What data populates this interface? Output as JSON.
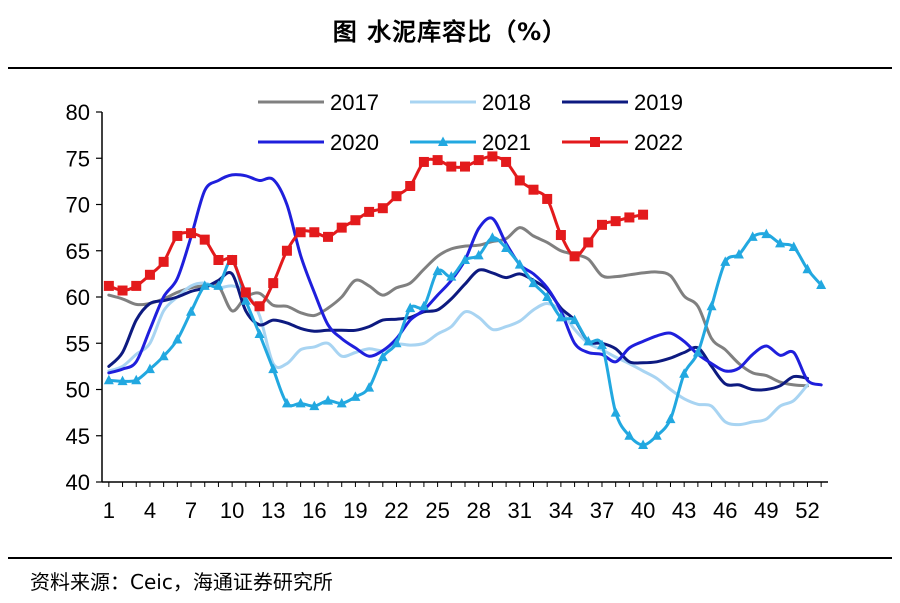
{
  "header": {
    "title": "图  水泥库容比（%）"
  },
  "footer": {
    "source": "资料来源：Ceic，海通证券研究所"
  },
  "chart_data": {
    "type": "line",
    "title": "图  水泥库容比（%）",
    "xlabel": "",
    "ylabel": "",
    "ylim": [
      40,
      80
    ],
    "xlim": [
      1,
      53
    ],
    "yticks": [
      40,
      45,
      50,
      55,
      60,
      65,
      70,
      75,
      80
    ],
    "xticks": [
      1,
      4,
      7,
      10,
      13,
      16,
      19,
      22,
      25,
      28,
      31,
      34,
      37,
      40,
      43,
      46,
      49,
      52
    ],
    "legend_position": "top",
    "series": [
      {
        "name": "2017",
        "color": "#808080",
        "marker": "none",
        "x": [
          1,
          2,
          3,
          4,
          5,
          6,
          7,
          8,
          9,
          10,
          11,
          12,
          13,
          14,
          15,
          16,
          17,
          18,
          19,
          20,
          21,
          22,
          23,
          24,
          25,
          26,
          27,
          28,
          29,
          30,
          31,
          32,
          33,
          34,
          35,
          36,
          37,
          38,
          39,
          40,
          41,
          42,
          43,
          44,
          45,
          46,
          47,
          48,
          49,
          50,
          51,
          52
        ],
        "values": [
          60.2,
          59.8,
          59.2,
          59.3,
          59.8,
          60.5,
          61.0,
          61.2,
          61.2,
          58.5,
          60.0,
          60.4,
          59.1,
          59.0,
          58.3,
          58.0,
          58.8,
          60.0,
          61.8,
          61.2,
          60.2,
          61.0,
          61.5,
          63.0,
          64.4,
          65.2,
          65.5,
          65.6,
          66.0,
          66.3,
          67.5,
          66.6,
          65.9,
          65.0,
          64.6,
          64.1,
          62.3,
          62.2,
          62.4,
          62.6,
          62.7,
          62.3,
          60.1,
          59.0,
          55.5,
          54.3,
          52.8,
          51.8,
          51.5,
          50.8,
          50.5,
          50.4
        ]
      },
      {
        "name": "2018",
        "color": "#a8d4f2",
        "marker": "none",
        "x": [
          1,
          2,
          3,
          4,
          5,
          6,
          7,
          8,
          9,
          10,
          11,
          12,
          13,
          14,
          15,
          16,
          17,
          18,
          19,
          20,
          21,
          22,
          23,
          24,
          25,
          26,
          27,
          28,
          29,
          30,
          31,
          32,
          33,
          34,
          35,
          36,
          37,
          38,
          39,
          40,
          41,
          42,
          43,
          44,
          45,
          46,
          47,
          48,
          49,
          50,
          51,
          52
        ],
        "values": [
          52.0,
          52.5,
          53.8,
          55.0,
          58.5,
          60.0,
          61.2,
          61.5,
          61.0,
          61.2,
          60.5,
          58.0,
          52.8,
          52.8,
          54.3,
          54.6,
          55.0,
          53.6,
          54.0,
          54.4,
          54.2,
          54.9,
          54.8,
          55.0,
          56.0,
          56.8,
          58.4,
          57.8,
          56.5,
          56.8,
          57.4,
          58.6,
          59.3,
          58.5,
          56.5,
          55.0,
          54.3,
          53.5,
          52.8,
          52.0,
          51.2,
          50.0,
          49.0,
          48.4,
          48.2,
          46.5,
          46.2,
          46.5,
          46.8,
          48.2,
          48.8,
          50.5
        ]
      },
      {
        "name": "2019",
        "color": "#0d1a80",
        "marker": "none",
        "x": [
          1,
          2,
          3,
          4,
          5,
          6,
          7,
          8,
          9,
          10,
          11,
          12,
          13,
          14,
          15,
          16,
          17,
          18,
          19,
          20,
          21,
          22,
          23,
          24,
          25,
          26,
          27,
          28,
          29,
          30,
          31,
          32,
          33,
          34,
          35,
          36,
          37,
          38,
          39,
          40,
          41,
          42,
          43,
          44,
          45,
          46,
          47,
          48,
          49,
          50,
          51,
          52
        ],
        "values": [
          52.5,
          54.0,
          57.5,
          59.3,
          59.6,
          60.0,
          60.6,
          61.0,
          61.8,
          62.5,
          58.5,
          57.0,
          57.5,
          57.2,
          56.6,
          56.3,
          56.4,
          56.4,
          56.4,
          56.8,
          57.5,
          57.6,
          57.8,
          58.4,
          58.6,
          59.8,
          61.4,
          62.9,
          62.6,
          62.1,
          62.5,
          61.8,
          60.8,
          58.8,
          57.5,
          55.2,
          55.0,
          54.4,
          53.0,
          52.9,
          53.0,
          53.4,
          54.0,
          54.5,
          52.5,
          50.6,
          50.5,
          50.0,
          50.0,
          50.4,
          51.4,
          51.2
        ]
      },
      {
        "name": "2020",
        "color": "#1f1fdc",
        "marker": "none",
        "x": [
          1,
          2,
          3,
          4,
          5,
          6,
          7,
          8,
          9,
          10,
          11,
          12,
          13,
          14,
          15,
          16,
          17,
          18,
          19,
          20,
          21,
          22,
          23,
          24,
          25,
          26,
          27,
          28,
          29,
          30,
          31,
          32,
          33,
          34,
          35,
          36,
          37,
          38,
          39,
          40,
          41,
          42,
          43,
          44,
          45,
          46,
          47,
          48,
          49,
          50,
          51,
          52,
          53
        ],
        "values": [
          51.8,
          52.2,
          53.0,
          56.5,
          60.0,
          62.0,
          66.5,
          71.5,
          72.6,
          73.2,
          73.1,
          72.6,
          72.7,
          70.0,
          64.5,
          60.5,
          57.0,
          55.5,
          54.5,
          53.6,
          54.2,
          55.5,
          57.5,
          58.6,
          60.2,
          61.8,
          64.0,
          67.4,
          68.5,
          65.8,
          63.5,
          62.5,
          61.0,
          58.5,
          55.0,
          54.0,
          53.8,
          53.0,
          54.5,
          55.2,
          55.8,
          56.1,
          55.2,
          53.8,
          52.8,
          52.0,
          52.3,
          53.8,
          54.7,
          53.7,
          54.0,
          51.0,
          50.5
        ]
      },
      {
        "name": "2021",
        "color": "#22a8e0",
        "marker": "triangle",
        "x": [
          1,
          2,
          3,
          4,
          5,
          6,
          7,
          8,
          9,
          10,
          11,
          12,
          13,
          14,
          15,
          16,
          17,
          18,
          19,
          20,
          21,
          22,
          23,
          24,
          25,
          26,
          27,
          28,
          29,
          30,
          31,
          32,
          33,
          34,
          35,
          36,
          37,
          38,
          39,
          40,
          41,
          42,
          43,
          44,
          45,
          46,
          47,
          48,
          49,
          50,
          51,
          52,
          53
        ],
        "values": [
          51.0,
          50.9,
          51.0,
          52.2,
          53.6,
          55.4,
          58.4,
          61.2,
          61.2,
          64.0,
          59.6,
          56.0,
          52.2,
          48.5,
          48.5,
          48.2,
          48.8,
          48.5,
          49.2,
          50.2,
          53.5,
          55.0,
          58.8,
          59.0,
          62.8,
          62.2,
          64.0,
          64.5,
          66.4,
          65.3,
          63.5,
          61.5,
          60.0,
          57.8,
          57.5,
          55.2,
          54.8,
          47.5,
          45.0,
          44.0,
          45.0,
          46.8,
          51.7,
          54.0,
          59.0,
          63.8,
          64.6,
          66.5,
          66.8,
          65.8,
          65.4,
          63.0,
          61.3
        ]
      },
      {
        "name": "2022",
        "color": "#e31a1c",
        "marker": "square",
        "x": [
          1,
          2,
          3,
          4,
          5,
          6,
          7,
          8,
          9,
          10,
          11,
          12,
          13,
          14,
          15,
          16,
          17,
          18,
          19,
          20,
          21,
          22,
          23,
          24,
          25,
          26,
          27,
          28,
          29,
          30,
          31,
          32,
          33,
          34,
          35,
          36,
          37,
          38,
          39,
          40
        ],
        "values": [
          61.2,
          60.7,
          61.2,
          62.4,
          63.8,
          66.6,
          66.9,
          66.2,
          64.0,
          64.0,
          60.5,
          59.0,
          61.5,
          65.0,
          67.0,
          67.0,
          66.5,
          67.5,
          68.3,
          69.2,
          69.6,
          70.9,
          72.0,
          74.6,
          74.8,
          74.1,
          74.1,
          74.8,
          75.2,
          74.6,
          72.6,
          71.6,
          70.6,
          66.7,
          64.4,
          65.9,
          67.8,
          68.2,
          68.6,
          68.9
        ]
      }
    ]
  }
}
